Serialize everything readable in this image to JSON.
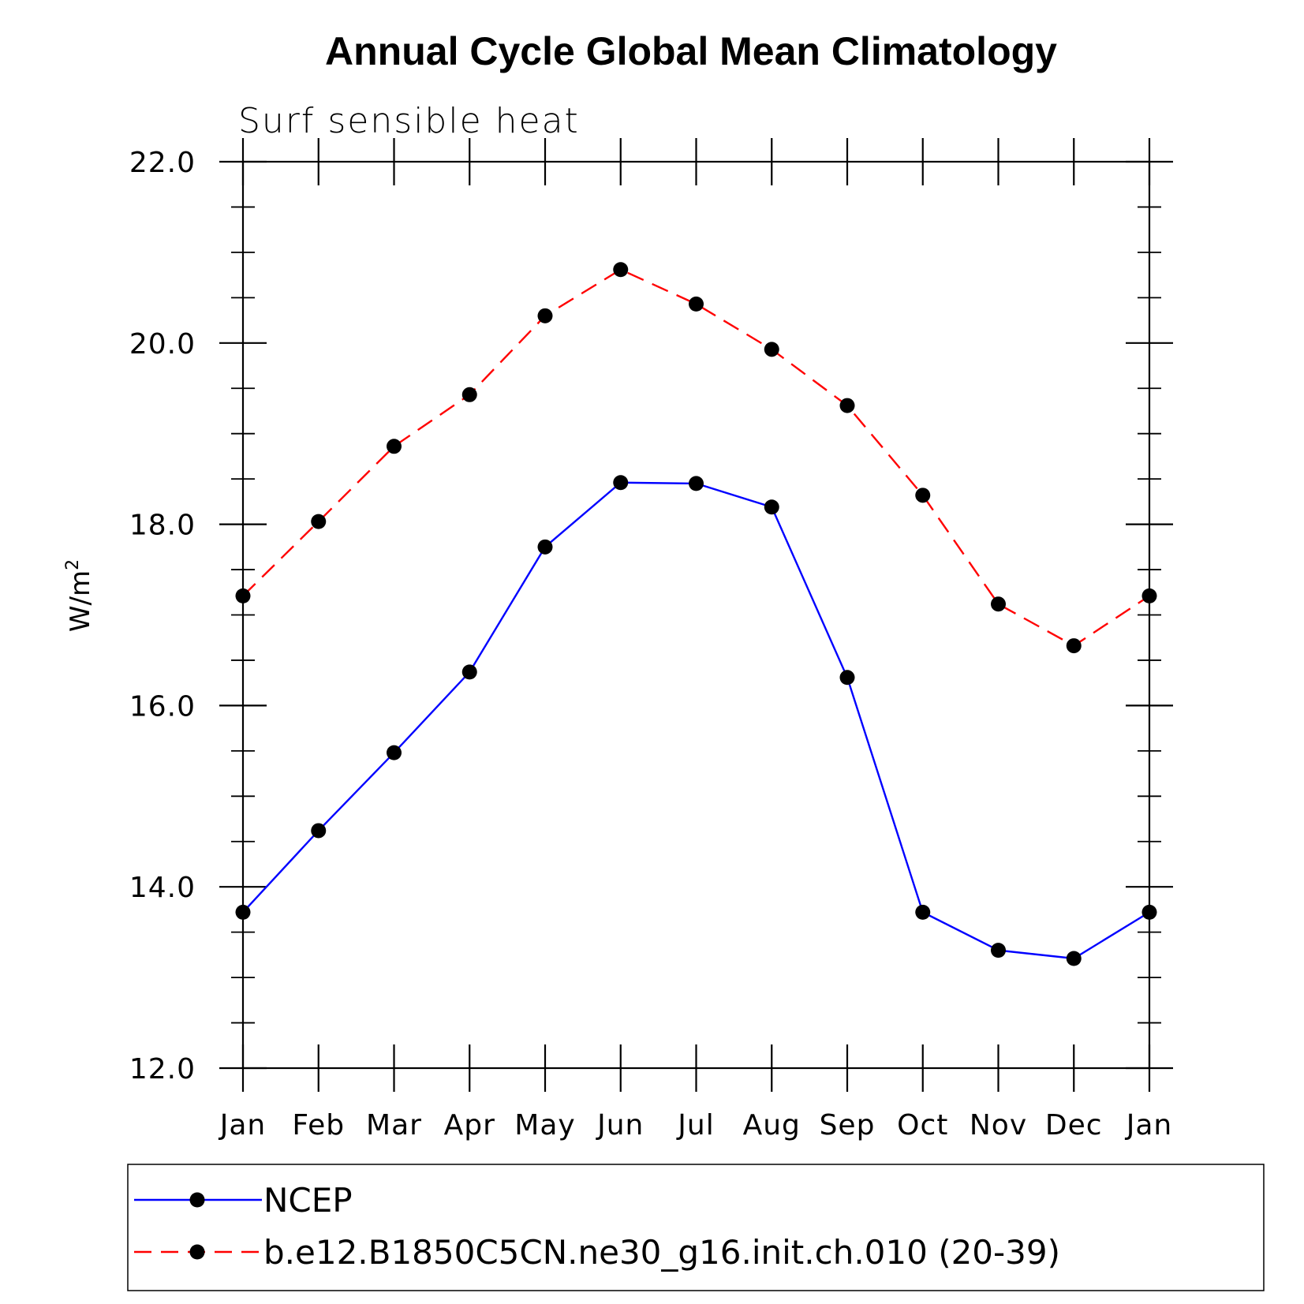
{
  "chart_data": {
    "type": "line",
    "title": "Annual Cycle Global Mean Climatology",
    "subtitle": "Surf sensible heat",
    "ylabel": "W/m",
    "ylabel_superscript": "2",
    "xlabel": "",
    "categories": [
      "Jan",
      "Feb",
      "Mar",
      "Apr",
      "May",
      "Jun",
      "Jul",
      "Aug",
      "Sep",
      "Oct",
      "Nov",
      "Dec",
      "Jan"
    ],
    "ylim": [
      12.0,
      22.0
    ],
    "yticks": [
      "12.0",
      "14.0",
      "16.0",
      "18.0",
      "20.0",
      "22.0"
    ],
    "ytick_values": [
      12,
      14,
      16,
      18,
      20,
      22
    ],
    "yminor_step": 0.5,
    "grid": false,
    "legend_position": "bottom",
    "series": [
      {
        "name": "NCEP",
        "color": "#0000ff",
        "dash": "solid",
        "marker": "filled-circle",
        "values": [
          13.72,
          14.62,
          15.48,
          16.37,
          17.75,
          18.46,
          18.45,
          18.19,
          16.31,
          13.72,
          13.3,
          13.21,
          13.72
        ]
      },
      {
        "name": "b.e12.B1850C5CN.ne30_g16.init.ch.010 (20-39)",
        "color": "#ff0000",
        "dash": "dashed",
        "marker": "filled-circle",
        "values": [
          17.21,
          18.03,
          18.86,
          19.43,
          20.3,
          20.81,
          20.43,
          19.93,
          19.31,
          18.32,
          17.12,
          16.66,
          17.21
        ]
      }
    ]
  }
}
